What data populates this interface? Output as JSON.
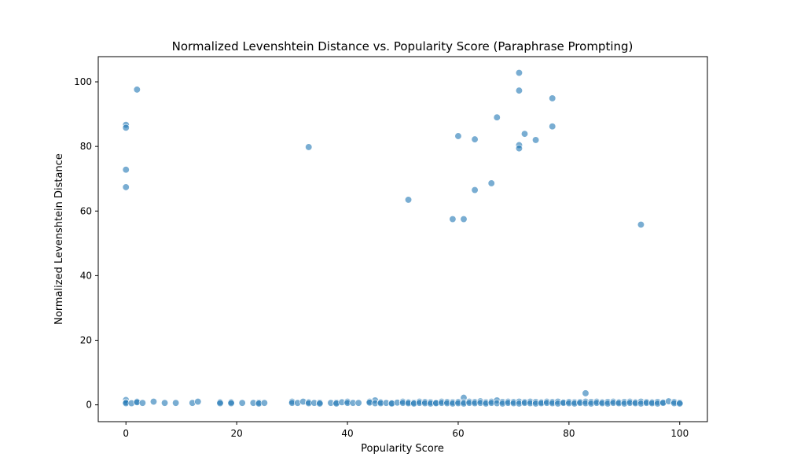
{
  "chart_data": {
    "type": "scatter",
    "title": "Normalized Levenshtein Distance vs. Popularity Score (Paraphrase Prompting)",
    "xlabel": "Popularity Score",
    "ylabel": "Normalized Levenshtein Distance",
    "xlim": [
      -5,
      105
    ],
    "ylim": [
      -5.2,
      107.8
    ],
    "xticks": [
      0,
      20,
      40,
      60,
      80,
      100
    ],
    "yticks": [
      0,
      20,
      40,
      60,
      80,
      100
    ],
    "grid": false,
    "point_color": "#1f77b4",
    "point_opacity": 0.6,
    "points": [
      [
        0,
        86.7
      ],
      [
        0,
        85.8
      ],
      [
        0,
        72.8
      ],
      [
        0,
        67.4
      ],
      [
        2,
        97.6
      ],
      [
        33,
        79.8
      ],
      [
        51,
        63.5
      ],
      [
        59,
        57.5
      ],
      [
        61,
        57.5
      ],
      [
        60,
        83.2
      ],
      [
        63,
        82.2
      ],
      [
        63,
        66.5
      ],
      [
        66,
        68.6
      ],
      [
        67,
        89.0
      ],
      [
        71,
        102.8
      ],
      [
        71,
        97.3
      ],
      [
        71,
        80.4
      ],
      [
        71,
        79.4
      ],
      [
        72,
        83.9
      ],
      [
        74,
        82.0
      ],
      [
        77,
        94.9
      ],
      [
        77,
        86.2
      ],
      [
        93,
        55.8
      ],
      [
        61,
        2.2
      ],
      [
        83,
        3.6
      ],
      [
        0,
        1.5
      ],
      [
        45,
        1.4
      ],
      [
        0,
        0.8
      ],
      [
        0,
        0.5
      ],
      [
        1,
        0.5
      ],
      [
        2,
        1.0
      ],
      [
        2,
        0.8
      ],
      [
        3,
        0.6
      ],
      [
        5,
        1.0
      ],
      [
        7,
        0.6
      ],
      [
        9,
        0.6
      ],
      [
        12,
        0.6
      ],
      [
        13,
        1.0
      ],
      [
        17,
        0.8
      ],
      [
        17,
        0.5
      ],
      [
        19,
        0.8
      ],
      [
        19,
        0.5
      ],
      [
        21,
        0.6
      ],
      [
        23,
        0.6
      ],
      [
        24,
        0.7
      ],
      [
        24,
        0.4
      ],
      [
        25,
        0.6
      ],
      [
        30,
        1.0
      ],
      [
        30,
        0.6
      ],
      [
        31,
        0.6
      ],
      [
        32,
        1.0
      ],
      [
        33,
        0.8
      ],
      [
        33,
        0.5
      ],
      [
        34,
        0.6
      ],
      [
        35,
        0.7
      ],
      [
        35,
        0.4
      ],
      [
        37,
        0.6
      ],
      [
        38,
        0.7
      ],
      [
        38,
        0.4
      ],
      [
        39,
        0.8
      ],
      [
        40,
        1.0
      ],
      [
        40,
        0.6
      ],
      [
        41,
        0.6
      ],
      [
        42,
        0.6
      ],
      [
        44,
        1.0
      ],
      [
        44,
        0.7
      ],
      [
        45,
        0.5
      ],
      [
        46,
        0.8
      ],
      [
        46,
        0.5
      ],
      [
        47,
        0.6
      ],
      [
        48,
        0.6
      ],
      [
        48,
        0.4
      ],
      [
        49,
        0.7
      ],
      [
        50,
        1.0
      ],
      [
        50,
        0.6
      ],
      [
        51,
        0.8
      ],
      [
        51,
        0.5
      ],
      [
        52,
        0.7
      ],
      [
        52,
        0.4
      ],
      [
        53,
        1.0
      ],
      [
        53,
        0.6
      ],
      [
        54,
        0.9
      ],
      [
        54,
        0.5
      ],
      [
        55,
        0.8
      ],
      [
        55,
        0.4
      ],
      [
        56,
        0.7
      ],
      [
        56,
        0.5
      ],
      [
        57,
        1.0
      ],
      [
        57,
        0.6
      ],
      [
        58,
        0.9
      ],
      [
        58,
        0.5
      ],
      [
        59,
        0.8
      ],
      [
        59,
        0.4
      ],
      [
        60,
        0.9
      ],
      [
        60,
        0.5
      ],
      [
        61,
        0.8
      ],
      [
        61,
        0.4
      ],
      [
        62,
        1.0
      ],
      [
        62,
        0.6
      ],
      [
        63,
        0.9
      ],
      [
        63,
        0.5
      ],
      [
        64,
        1.1
      ],
      [
        64,
        0.6
      ],
      [
        65,
        0.8
      ],
      [
        65,
        0.4
      ],
      [
        66,
        1.0
      ],
      [
        66,
        0.6
      ],
      [
        67,
        1.4
      ],
      [
        67,
        0.5
      ],
      [
        68,
        0.9
      ],
      [
        68,
        0.4
      ],
      [
        69,
        1.0
      ],
      [
        69,
        0.6
      ],
      [
        70,
        0.9
      ],
      [
        70,
        0.5
      ],
      [
        71,
        1.0
      ],
      [
        71,
        0.4
      ],
      [
        72,
        0.9
      ],
      [
        72,
        0.6
      ],
      [
        73,
        1.0
      ],
      [
        73,
        0.5
      ],
      [
        74,
        0.9
      ],
      [
        74,
        0.4
      ],
      [
        75,
        0.8
      ],
      [
        75,
        0.5
      ],
      [
        76,
        1.0
      ],
      [
        76,
        0.6
      ],
      [
        77,
        0.9
      ],
      [
        77,
        0.5
      ],
      [
        78,
        1.0
      ],
      [
        78,
        0.4
      ],
      [
        79,
        0.8
      ],
      [
        79,
        0.6
      ],
      [
        80,
        0.9
      ],
      [
        80,
        0.5
      ],
      [
        81,
        0.8
      ],
      [
        81,
        0.4
      ],
      [
        82,
        0.9
      ],
      [
        82,
        0.6
      ],
      [
        83,
        1.0
      ],
      [
        83,
        0.5
      ],
      [
        84,
        0.9
      ],
      [
        84,
        0.4
      ],
      [
        85,
        1.0
      ],
      [
        85,
        0.6
      ],
      [
        86,
        0.8
      ],
      [
        86,
        0.5
      ],
      [
        87,
        0.9
      ],
      [
        87,
        0.4
      ],
      [
        88,
        1.0
      ],
      [
        88,
        0.6
      ],
      [
        89,
        0.8
      ],
      [
        89,
        0.5
      ],
      [
        90,
        0.9
      ],
      [
        90,
        0.4
      ],
      [
        91,
        1.0
      ],
      [
        91,
        0.6
      ],
      [
        92,
        0.8
      ],
      [
        92,
        0.5
      ],
      [
        93,
        1.0
      ],
      [
        93,
        0.4
      ],
      [
        94,
        0.9
      ],
      [
        94,
        0.6
      ],
      [
        95,
        0.8
      ],
      [
        95,
        0.5
      ],
      [
        96,
        0.9
      ],
      [
        96,
        0.4
      ],
      [
        97,
        0.8
      ],
      [
        97,
        0.6
      ],
      [
        98,
        1.1
      ],
      [
        99,
        0.9
      ],
      [
        99,
        0.5
      ],
      [
        100,
        0.7
      ],
      [
        100,
        0.4
      ]
    ]
  }
}
